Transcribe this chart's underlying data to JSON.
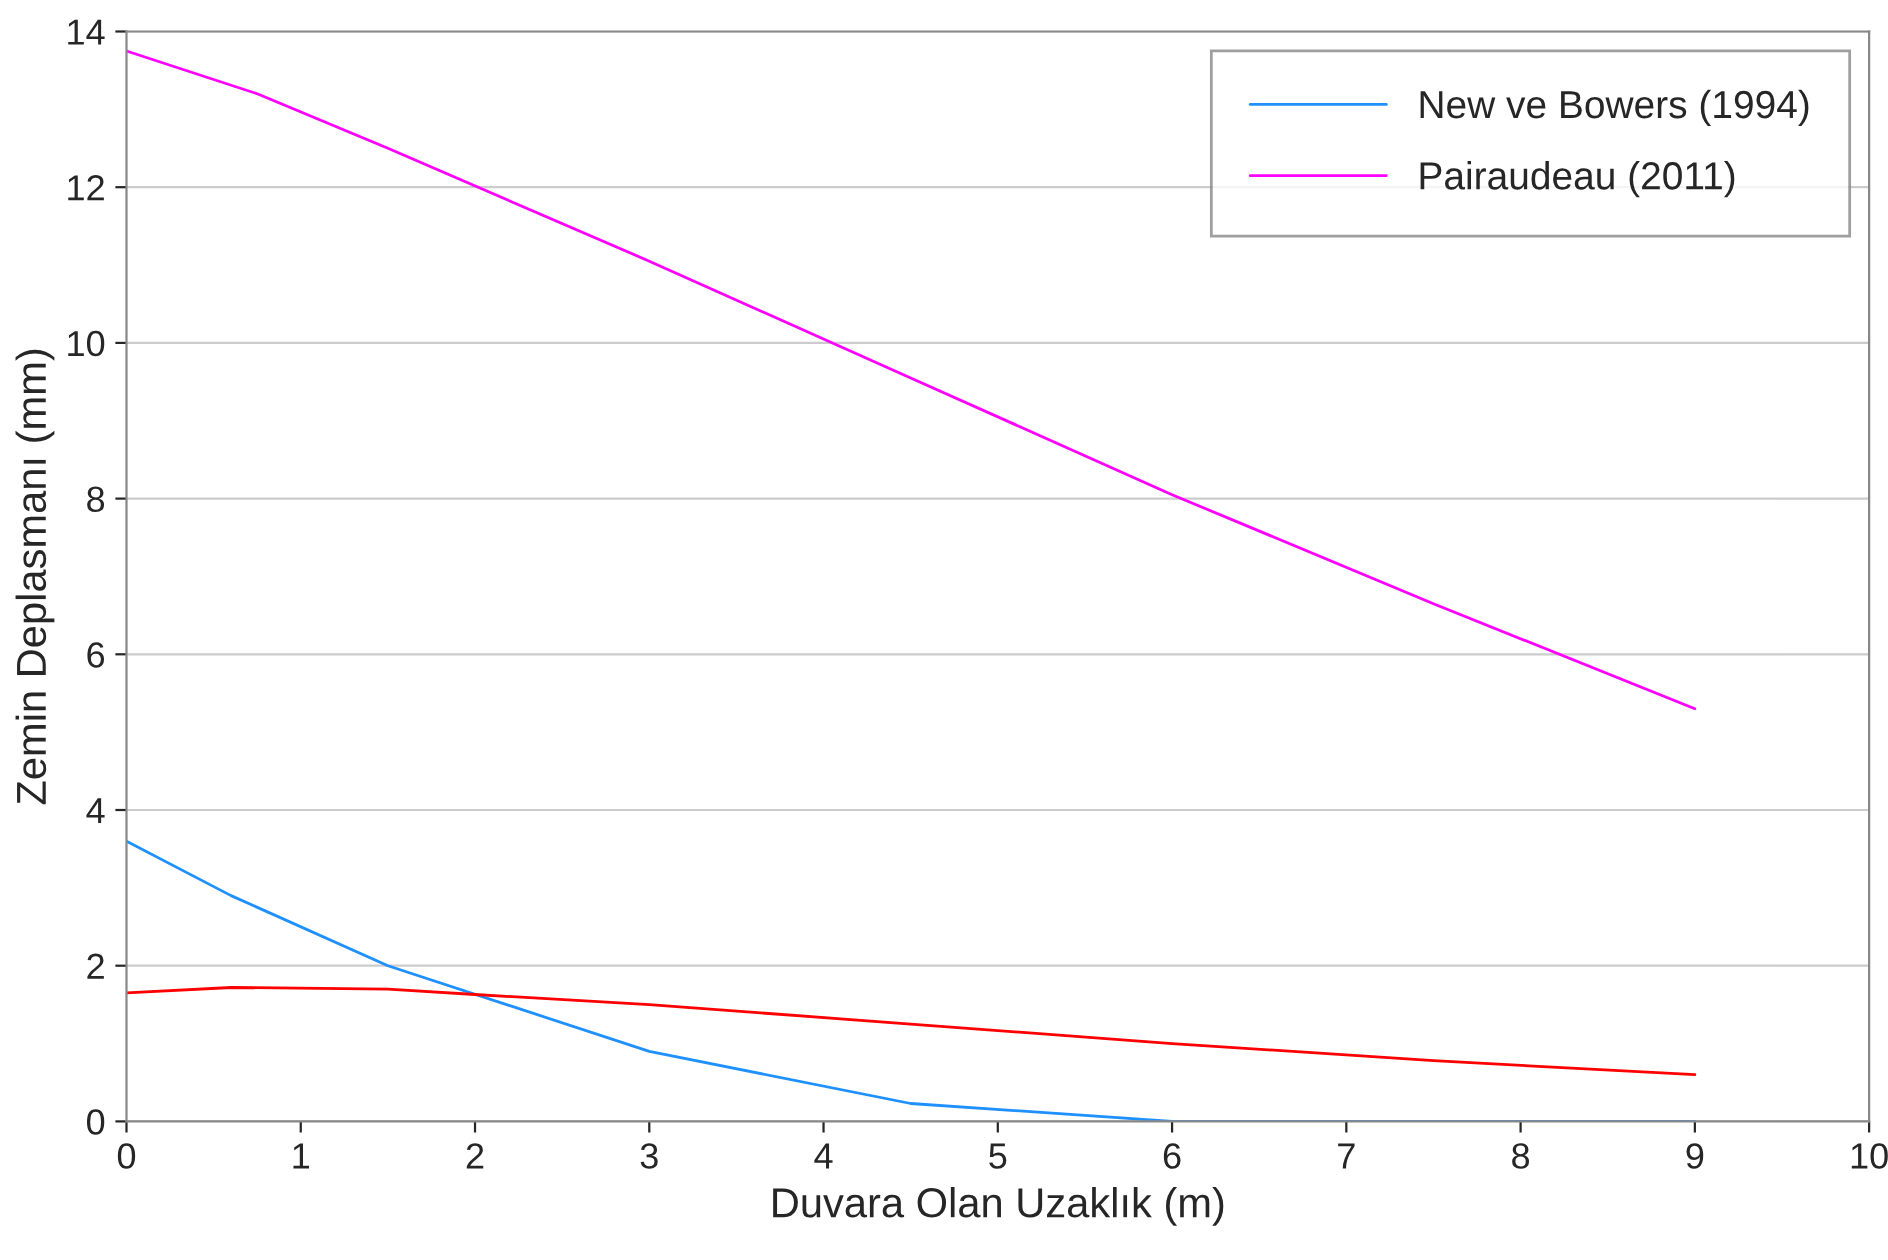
{
  "chart_data": {
    "type": "line",
    "xlabel": "Duvara Olan Uzaklık (m)",
    "ylabel": "Zemin Deplasmanı (mm)",
    "xlim": [
      0,
      10
    ],
    "xticks": [
      0,
      1,
      2,
      3,
      4,
      5,
      6,
      7,
      8,
      9,
      10
    ],
    "ylim": [
      0,
      14
    ],
    "yticks": [
      0,
      2,
      4,
      6,
      8,
      10,
      12,
      14
    ],
    "grid": "y",
    "legend": "top right",
    "series": [
      {
        "name": "New ve Bowers (1994)",
        "color": "#1e90ff",
        "x": [
          0,
          0.6,
          1.5,
          3,
          4.5,
          6,
          7.5,
          9
        ],
        "values": [
          3.6,
          2.9,
          2.0,
          0.9,
          0.23,
          0,
          0,
          0
        ]
      },
      {
        "name": "Pairaudeau (2011)",
        "color": "#ff00ff",
        "x": [
          0,
          0.75,
          1.5,
          3,
          4.5,
          6,
          7.5,
          9
        ],
        "values": [
          13.75,
          13.2,
          12.5,
          11.05,
          9.55,
          8.05,
          6.65,
          5.3
        ]
      },
      {
        "color": "#ff0000",
        "x": [
          0,
          0.6,
          1.5,
          2,
          3,
          4.5,
          6,
          7.5,
          9
        ],
        "values": [
          1.65,
          1.72,
          1.7,
          1.63,
          1.5,
          1.25,
          1.0,
          0.78,
          0.6
        ]
      }
    ]
  }
}
